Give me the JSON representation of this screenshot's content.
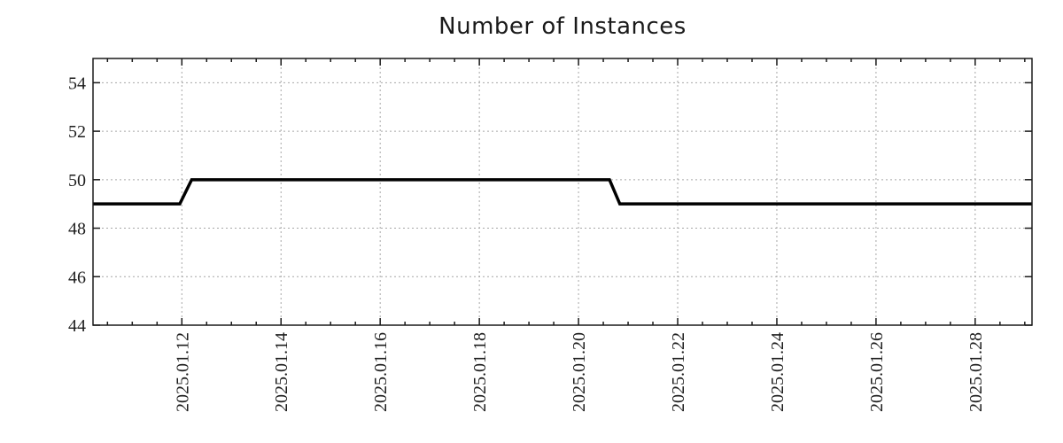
{
  "chart_data": {
    "type": "line",
    "title": "Number of Instances",
    "xlabel": "",
    "ylabel": "",
    "legend": "none",
    "grid": "dotted gray gridlines at major ticks, both axes",
    "ylim": [
      44,
      55
    ],
    "yticks": [
      44,
      46,
      48,
      50,
      52,
      54
    ],
    "xlim": [
      "2025-01-10 05:00",
      "2025-01-29 03:30"
    ],
    "xticks": [
      {
        "date": "2025-01-12",
        "label": "2025.01.12"
      },
      {
        "date": "2025-01-14",
        "label": "2025.01.14"
      },
      {
        "date": "2025-01-16",
        "label": "2025.01.16"
      },
      {
        "date": "2025-01-18",
        "label": "2025.01.18"
      },
      {
        "date": "2025-01-20",
        "label": "2025.01.20"
      },
      {
        "date": "2025-01-22",
        "label": "2025.01.22"
      },
      {
        "date": "2025-01-24",
        "label": "2025.01.24"
      },
      {
        "date": "2025-01-26",
        "label": "2025.01.26"
      },
      {
        "date": "2025-01-28",
        "label": "2025.01.28"
      }
    ],
    "minor_x_tick_hours": 12,
    "series": [
      {
        "name": "instances",
        "color": "#000000",
        "points": [
          [
            "2025-01-10 05:00",
            49
          ],
          [
            "2025-01-11 23:00",
            49
          ],
          [
            "2025-01-12 04:45",
            50
          ],
          [
            "2025-01-20 15:00",
            50
          ],
          [
            "2025-01-20 20:00",
            49
          ],
          [
            "2025-01-29 03:30",
            49
          ]
        ]
      }
    ]
  },
  "colors": {
    "line": "#000000",
    "grid": "#a6a6a6",
    "border": "#1a1a1a",
    "tick_text": "#1d1d1d",
    "title_text": "#1a1a1a",
    "background": "#ffffff"
  }
}
